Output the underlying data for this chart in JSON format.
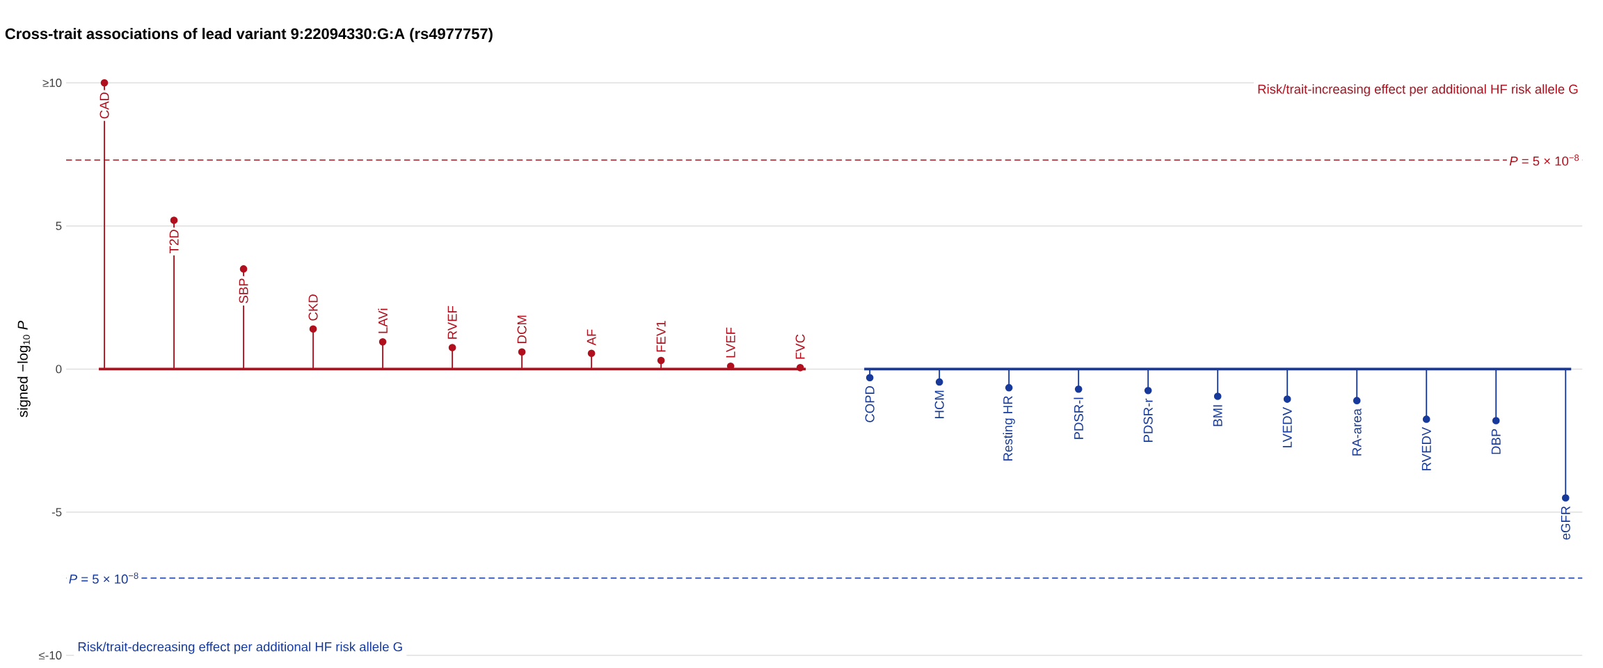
{
  "chart_data": {
    "type": "lollipop",
    "title": "Cross-trait associations of lead variant 9:22094330:G:A (rs4977757)",
    "ylabel": "signed −log$_{10}$ *P*",
    "categories": [
      "CAD",
      "T2D",
      "SBP",
      "CKD",
      "LAVi",
      "RVEF",
      "DCM",
      "AF",
      "FEV1",
      "LVEF",
      "FVC",
      "COPD",
      "HCM",
      "Resting HR",
      "PDSR-l",
      "PDSR-r",
      "BMI",
      "LVEDV",
      "RA-area",
      "RVEDV",
      "DBP",
      "eGFR"
    ],
    "values": [
      10,
      5.2,
      3.5,
      1.4,
      0.95,
      0.75,
      0.6,
      0.55,
      0.3,
      0.1,
      0.05,
      -0.3,
      -0.45,
      -0.65,
      -0.7,
      -0.75,
      -0.95,
      -1.05,
      -1.1,
      -1.75,
      -1.8,
      -4.5
    ],
    "colors": [
      "#b0101d",
      "#b0101d",
      "#b0101d",
      "#b0101d",
      "#b0101d",
      "#b0101d",
      "#b0101d",
      "#b0101d",
      "#b0101d",
      "#b0101d",
      "#b0101d",
      "#16399a",
      "#16399a",
      "#16399a",
      "#16399a",
      "#16399a",
      "#16399a",
      "#16399a",
      "#16399a",
      "#16399a",
      "#16399a",
      "#16399a"
    ],
    "ylim": [
      -10,
      10
    ],
    "yticks": [
      {
        "value": -10,
        "label": "≤-10"
      },
      -5,
      0,
      5,
      {
        "value": 10,
        "label": "≥10"
      }
    ],
    "grid": "y",
    "marker": "circle",
    "ref_lines": [
      {
        "axis": "y",
        "value": 0,
        "color": "#b0101d",
        "line_style": "solid"
      },
      {
        "axis": "y",
        "value": 0,
        "color": "#16399a",
        "line_style": "solid"
      },
      {
        "axis": "y",
        "value": 7.30103,
        "color": "#b0101d",
        "line_style": "dashed"
      },
      {
        "axis": "y",
        "value": -7.30103,
        "color": "#16399a",
        "line_style": "dashed"
      }
    ],
    "annotations": [
      "Risk/trait-increasing effect per additional HF risk allele G",
      "Risk/trait-decreasing effect per additional HF risk allele G",
      {
        "text": "*P* = 5 × 10$^{−8}$",
        "y": 7.30103
      },
      {
        "text": "*P* = 5 × 10$^{−8}$",
        "y": -7.30103
      }
    ]
  }
}
